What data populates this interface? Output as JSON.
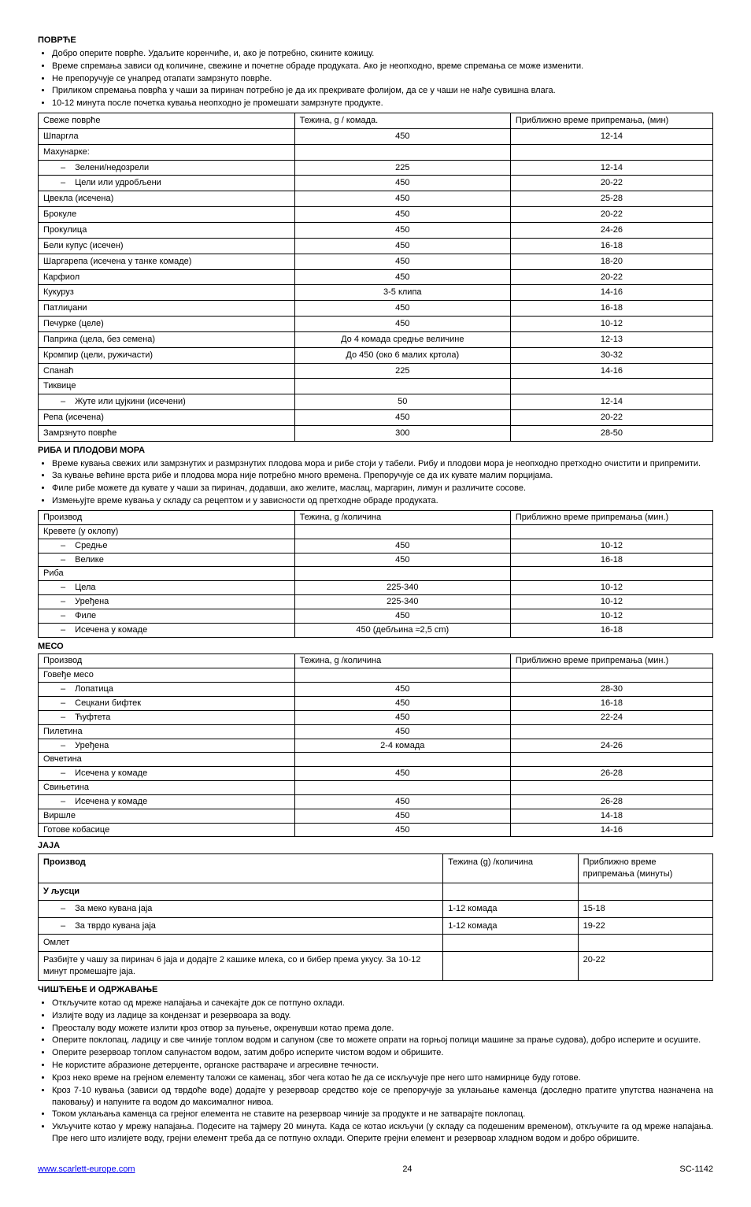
{
  "vegetables": {
    "title": "ПОВРЋЕ",
    "bullets": [
      "Добро оперите поврће. Удаљите коренчиће, и, ако је потребно, скините кожицу.",
      "Време спремања зависи од количине, свежине и почетне обраде продуката. Ако је неопходно, време спремања се може изменити.",
      "Не препоручује се унапред отапати замрзнуто поврће.",
      "Приликом спремања поврћа у чаши за пиринач потребно је да их прекривате фолијом, да се у чаши не нађе сувишна влага.",
      "10-12 минута после почетка кувања неопходно је промешати замрзнуте продукте."
    ],
    "headers": [
      "Свеже поврће",
      "Тежина, g / комада.",
      "Приближно време припремања, (мин)"
    ],
    "rows": [
      {
        "c1": "Шпаргла",
        "c2": "450",
        "c3": "12-14"
      },
      {
        "c1": "Махунарке:",
        "c2": "",
        "c3": ""
      },
      {
        "c1": "Зелени/недозрели",
        "c2": "225",
        "c3": "12-14",
        "indent": true
      },
      {
        "c1": "Цели или удробљени",
        "c2": "450",
        "c3": "20-22",
        "indent": true
      },
      {
        "c1": "Цвекла (исечена)",
        "c2": "450",
        "c3": "25-28"
      },
      {
        "c1": "Брокуле",
        "c2": "450",
        "c3": "20-22"
      },
      {
        "c1": "Прокулица",
        "c2": "450",
        "c3": "24-26"
      },
      {
        "c1": "Бели купус (исечен)",
        "c2": "450",
        "c3": "16-18"
      },
      {
        "c1": "Шаргарепа (исечена у танке комаде)",
        "c2": "450",
        "c3": "18-20"
      },
      {
        "c1": "Карфиол",
        "c2": "450",
        "c3": "20-22"
      },
      {
        "c1": "Кукуруз",
        "c2": "3-5 клипа",
        "c3": "14-16"
      },
      {
        "c1": "Патлиџани",
        "c2": "450",
        "c3": "16-18"
      },
      {
        "c1": "Печурке (целе)",
        "c2": "450",
        "c3": "10-12"
      },
      {
        "c1": "Паприка (цела, без семена)",
        "c2": "До 4 комада средње величине",
        "c3": "12-13"
      },
      {
        "c1": "Кромпир (цели, ружичасти)",
        "c2": "До 450 (око 6 малих кртола)",
        "c3": "30-32"
      },
      {
        "c1": "Спанаћ",
        "c2": "225",
        "c3": "14-16"
      },
      {
        "c1": "Тиквице",
        "c2": "",
        "c3": ""
      },
      {
        "c1": "Жуте или цујкини (исечени)",
        "c2": "50",
        "c3": "12-14",
        "indent": true
      },
      {
        "c1": "Репа (исечена)",
        "c2": "450",
        "c3": "20-22"
      },
      {
        "c1": "Замрзнуто поврће",
        "c2": "300",
        "c3": "28-50"
      }
    ]
  },
  "seafood": {
    "title": "РИБА И ПЛОДОВИ МОРА",
    "bullets": [
      "Време кувања свежих или замрзнутих и размрзнутих плодова мора и рибе стоји у табели. Рибу и плодови мора је неопходно претходно очистити и припремити.",
      "За кување већине врста рибе и плодова мора није потребно много времена. Препоручује се да их кувате малим порцијама.",
      "Филе рибе можете да кувате у чаши за пиринач, додавши, ако желите, маслац, маргарин, лимун и различите сосове.",
      "Измењујте време кувања у складу са рецептом и у зависности од претходне обраде продуката."
    ],
    "headers": [
      "Производ",
      "Тежина, g /количина",
      "Приближно време припремања (мин.)"
    ],
    "rows": [
      {
        "c1": "Кревете (у оклопу)",
        "c2": "",
        "c3": ""
      },
      {
        "c1": "Средње",
        "c2": "450",
        "c3": "10-12",
        "indent": true
      },
      {
        "c1": "Велике",
        "c2": "450",
        "c3": "16-18",
        "indent": true
      },
      {
        "c1": "Риба",
        "c2": "",
        "c3": ""
      },
      {
        "c1": "Цела",
        "c2": "225-340",
        "c3": "10-12",
        "indent": true
      },
      {
        "c1": "Уређена",
        "c2": "225-340",
        "c3": "10-12",
        "indent": true
      },
      {
        "c1": "Филе",
        "c2": "450",
        "c3": "10-12",
        "indent": true
      },
      {
        "c1": "Исечена у комаде",
        "c2": "450 (дебљина ≈2,5 cm)",
        "c3": "16-18",
        "indent": true
      }
    ]
  },
  "meat": {
    "title": "МЕСО",
    "headers": [
      "Производ",
      "Тежина, g /количина",
      "Приближно време припремања (мин.)"
    ],
    "rows": [
      {
        "c1": "Говеђе месо",
        "c2": "",
        "c3": ""
      },
      {
        "c1": "Лопатица",
        "c2": "450",
        "c3": "28-30",
        "indent": true
      },
      {
        "c1": "Сецкани бифтек",
        "c2": "450",
        "c3": "16-18",
        "indent": true
      },
      {
        "c1": "Ћуфтета",
        "c2": "450",
        "c3": "22-24",
        "indent": true
      },
      {
        "c1": "Пилетина",
        "c2": "450",
        "c3": ""
      },
      {
        "c1": "Уређена",
        "c2": "2-4 комада",
        "c3": "24-26",
        "indent": true
      },
      {
        "c1": "Овчетина",
        "c2": "",
        "c3": ""
      },
      {
        "c1": "Исечена у комаде",
        "c2": "450",
        "c3": "26-28",
        "indent": true
      },
      {
        "c1": "Свињетина",
        "c2": "",
        "c3": ""
      },
      {
        "c1": "Исечена у комаде",
        "c2": "450",
        "c3": "26-28",
        "indent": true
      },
      {
        "c1": "Виршле",
        "c2": "450",
        "c3": "14-18"
      },
      {
        "c1": "Готове кобасице",
        "c2": "450",
        "c3": "14-16"
      }
    ]
  },
  "eggs": {
    "title": "ЈАЈА",
    "headers": [
      "Производ",
      "Тежина (g) /количина",
      "Приближно време припремања (минуты)"
    ],
    "rows": [
      {
        "c1": "У љусци",
        "c2": "",
        "c3": "",
        "bold": true
      },
      {
        "c1": "За меко кувана јаја",
        "c2": "1-12 комада",
        "c3": "15-18",
        "indent": true
      },
      {
        "c1": "За тврдо кувана јаја",
        "c2": "1-12 комада",
        "c3": "19-22",
        "indent": true
      },
      {
        "c1": "Омлет",
        "c2": "",
        "c3": ""
      },
      {
        "c1": "Разбијте у чашу за пиринач 6 јаја и додајте 2 кашике млека, со и бибер према укусу. За 10-12 минут промешајте јаја.",
        "c2": "",
        "c3": "20-22"
      }
    ]
  },
  "cleaning": {
    "title": "ЧИШЋЕЊЕ И ОДРЖАВАЊЕ",
    "bullets": [
      "Откључите котао од мреже напајања и сачекајте док се потпуно охлади.",
      "Излијте воду из ладице за кондензат и резервоара за воду.",
      "Преосталу воду можете излити кроз отвор за пуњење, окренувши котао према доле.",
      "Оперите поклопац, ладицу и све чиније топлом водом и сапуном (све то можете опрати на горњој полици машине за прање судова), добро исперите и осушите.",
      "Оперите резервоар топлом сапунастом водом, затим добро исперите чистом водом и обришите.",
      "Не користите абразионе детерџенте, органске раствараче и агресивне течности.",
      "Кроз неко време на грејном елементу таложи се каменац, због чега котао ће да се искључује пре него што намирнице буду готове.",
      "Кроз 7-10 кувања (зависи од тврдоће воде) додајте у резервоар средство које се препоручује за уклањање каменца (доследно пратите упутства назначена на паковању) и напуните га водом до максималног нивоа.",
      "Током уклањања каменца са грејног елемента не ставите на резервоар чиније за продукте и не затварајте поклопац.",
      "Укључите котао у мрежу напајања. Подесите на тајмеру 20 минута. Када се котао искључи (у складу са подешеним временом), откључите га од мреже напајања. Пре него што излијете воду, грејни елемент треба да се потпуно охлади. Оперите грејни елемент и резервоар хладном водом и добро обришите."
    ]
  },
  "footer": {
    "url": "www.scarlett-europe.com",
    "page": "24",
    "model": "SC-1142"
  }
}
